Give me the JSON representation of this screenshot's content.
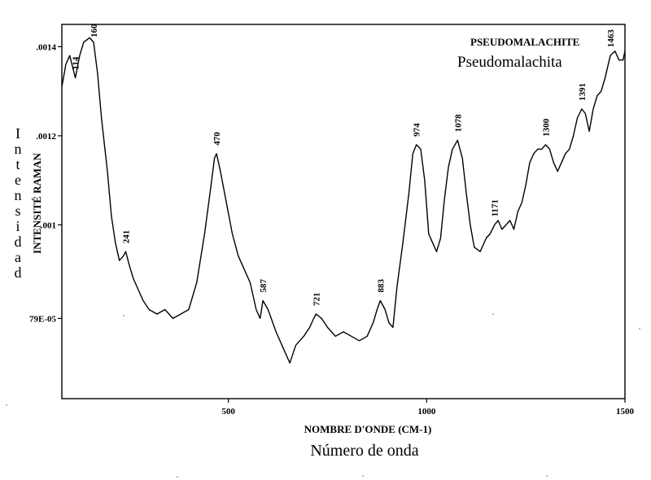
{
  "chart_data": {
    "type": "line",
    "title": "PSEUDOMALACHITE",
    "subtitle": "Pseudomalachita",
    "xlabel": "NOMBRE D'ONDE (CM-1)",
    "xlabel_secondary": "Número de onda",
    "ylabel": "INTENSITÉ RAMAN",
    "ylabel_secondary": "Intensidad",
    "xlim": [
      80,
      1500
    ],
    "ylim": [
      0.00061,
      0.00145
    ],
    "x_ticks": [
      {
        "value": 500,
        "label": "500"
      },
      {
        "value": 1000,
        "label": "1000"
      },
      {
        "value": 1500,
        "label": "1500"
      }
    ],
    "y_ticks": [
      {
        "value": 0.0014,
        "label": ".0014"
      },
      {
        "value": 0.0012,
        "label": ".0012"
      },
      {
        "value": 0.001,
        "label": ".001"
      },
      {
        "value": 0.00079,
        "label": "79E-05"
      }
    ],
    "grid": false,
    "legend": "none",
    "peak_labels": [
      {
        "x": 114,
        "label": "114"
      },
      {
        "x": 160,
        "label": "160"
      },
      {
        "x": 241,
        "label": "241"
      },
      {
        "x": 470,
        "label": "470"
      },
      {
        "x": 587,
        "label": "587"
      },
      {
        "x": 721,
        "label": "721"
      },
      {
        "x": 883,
        "label": "883"
      },
      {
        "x": 974,
        "label": "974"
      },
      {
        "x": 1078,
        "label": "1078"
      },
      {
        "x": 1171,
        "label": "1171"
      },
      {
        "x": 1300,
        "label": "1300"
      },
      {
        "x": 1391,
        "label": "1391"
      },
      {
        "x": 1463,
        "label": "1463"
      }
    ],
    "series": [
      {
        "x": [
          80,
          90,
          100,
          114,
          125,
          135,
          150,
          160,
          170,
          180,
          195,
          205,
          215,
          225,
          235,
          241,
          250,
          260,
          270,
          285,
          300,
          320,
          340,
          360,
          380,
          400,
          420,
          440,
          455,
          465,
          470,
          480,
          495,
          510,
          525,
          540,
          555,
          570,
          580,
          587,
          600,
          620,
          640,
          655,
          670,
          690,
          705,
          715,
          721,
          735,
          750,
          770,
          790,
          810,
          830,
          850,
          865,
          875,
          883,
          895,
          905,
          915,
          925,
          940,
          955,
          965,
          974,
          985,
          995,
          1005,
          1015,
          1025,
          1035,
          1045,
          1055,
          1065,
          1078,
          1090,
          1100,
          1110,
          1120,
          1135,
          1150,
          1160,
          1171,
          1180,
          1190,
          1200,
          1210,
          1220,
          1230,
          1240,
          1250,
          1260,
          1270,
          1280,
          1290,
          1300,
          1310,
          1320,
          1330,
          1340,
          1350,
          1360,
          1370,
          1380,
          1391,
          1400,
          1410,
          1420,
          1430,
          1440,
          1450,
          1463,
          1475,
          1485,
          1495,
          1500
        ],
        "y": [
          0.00131,
          0.00136,
          0.00138,
          0.00133,
          0.00138,
          0.00141,
          0.00142,
          0.00141,
          0.00134,
          0.00124,
          0.00112,
          0.00102,
          0.00096,
          0.00092,
          0.00093,
          0.00094,
          0.00091,
          0.00088,
          0.00086,
          0.00083,
          0.00081,
          0.0008,
          0.00081,
          0.00079,
          0.0008,
          0.00081,
          0.00087,
          0.00098,
          0.00108,
          0.00115,
          0.00116,
          0.00112,
          0.00105,
          0.00098,
          0.00093,
          0.0009,
          0.00087,
          0.00081,
          0.00079,
          0.00083,
          0.00081,
          0.00076,
          0.00072,
          0.00069,
          0.00073,
          0.00075,
          0.00077,
          0.00079,
          0.0008,
          0.00079,
          0.00077,
          0.00075,
          0.00076,
          0.00075,
          0.00074,
          0.00075,
          0.00078,
          0.00081,
          0.00083,
          0.00081,
          0.00078,
          0.00077,
          0.00086,
          0.00096,
          0.00107,
          0.00116,
          0.00118,
          0.00117,
          0.0011,
          0.00098,
          0.00096,
          0.00094,
          0.00097,
          0.00106,
          0.00113,
          0.00117,
          0.00119,
          0.00115,
          0.00107,
          0.001,
          0.00095,
          0.00094,
          0.00097,
          0.00098,
          0.001,
          0.00101,
          0.00099,
          0.001,
          0.00101,
          0.00099,
          0.00103,
          0.00105,
          0.00109,
          0.00114,
          0.00116,
          0.00117,
          0.00117,
          0.00118,
          0.00117,
          0.00114,
          0.00112,
          0.00114,
          0.00116,
          0.00117,
          0.0012,
          0.00124,
          0.00126,
          0.00125,
          0.00121,
          0.00126,
          0.00129,
          0.0013,
          0.00133,
          0.00138,
          0.00139,
          0.00137,
          0.00137,
          0.00139
        ]
      }
    ]
  }
}
